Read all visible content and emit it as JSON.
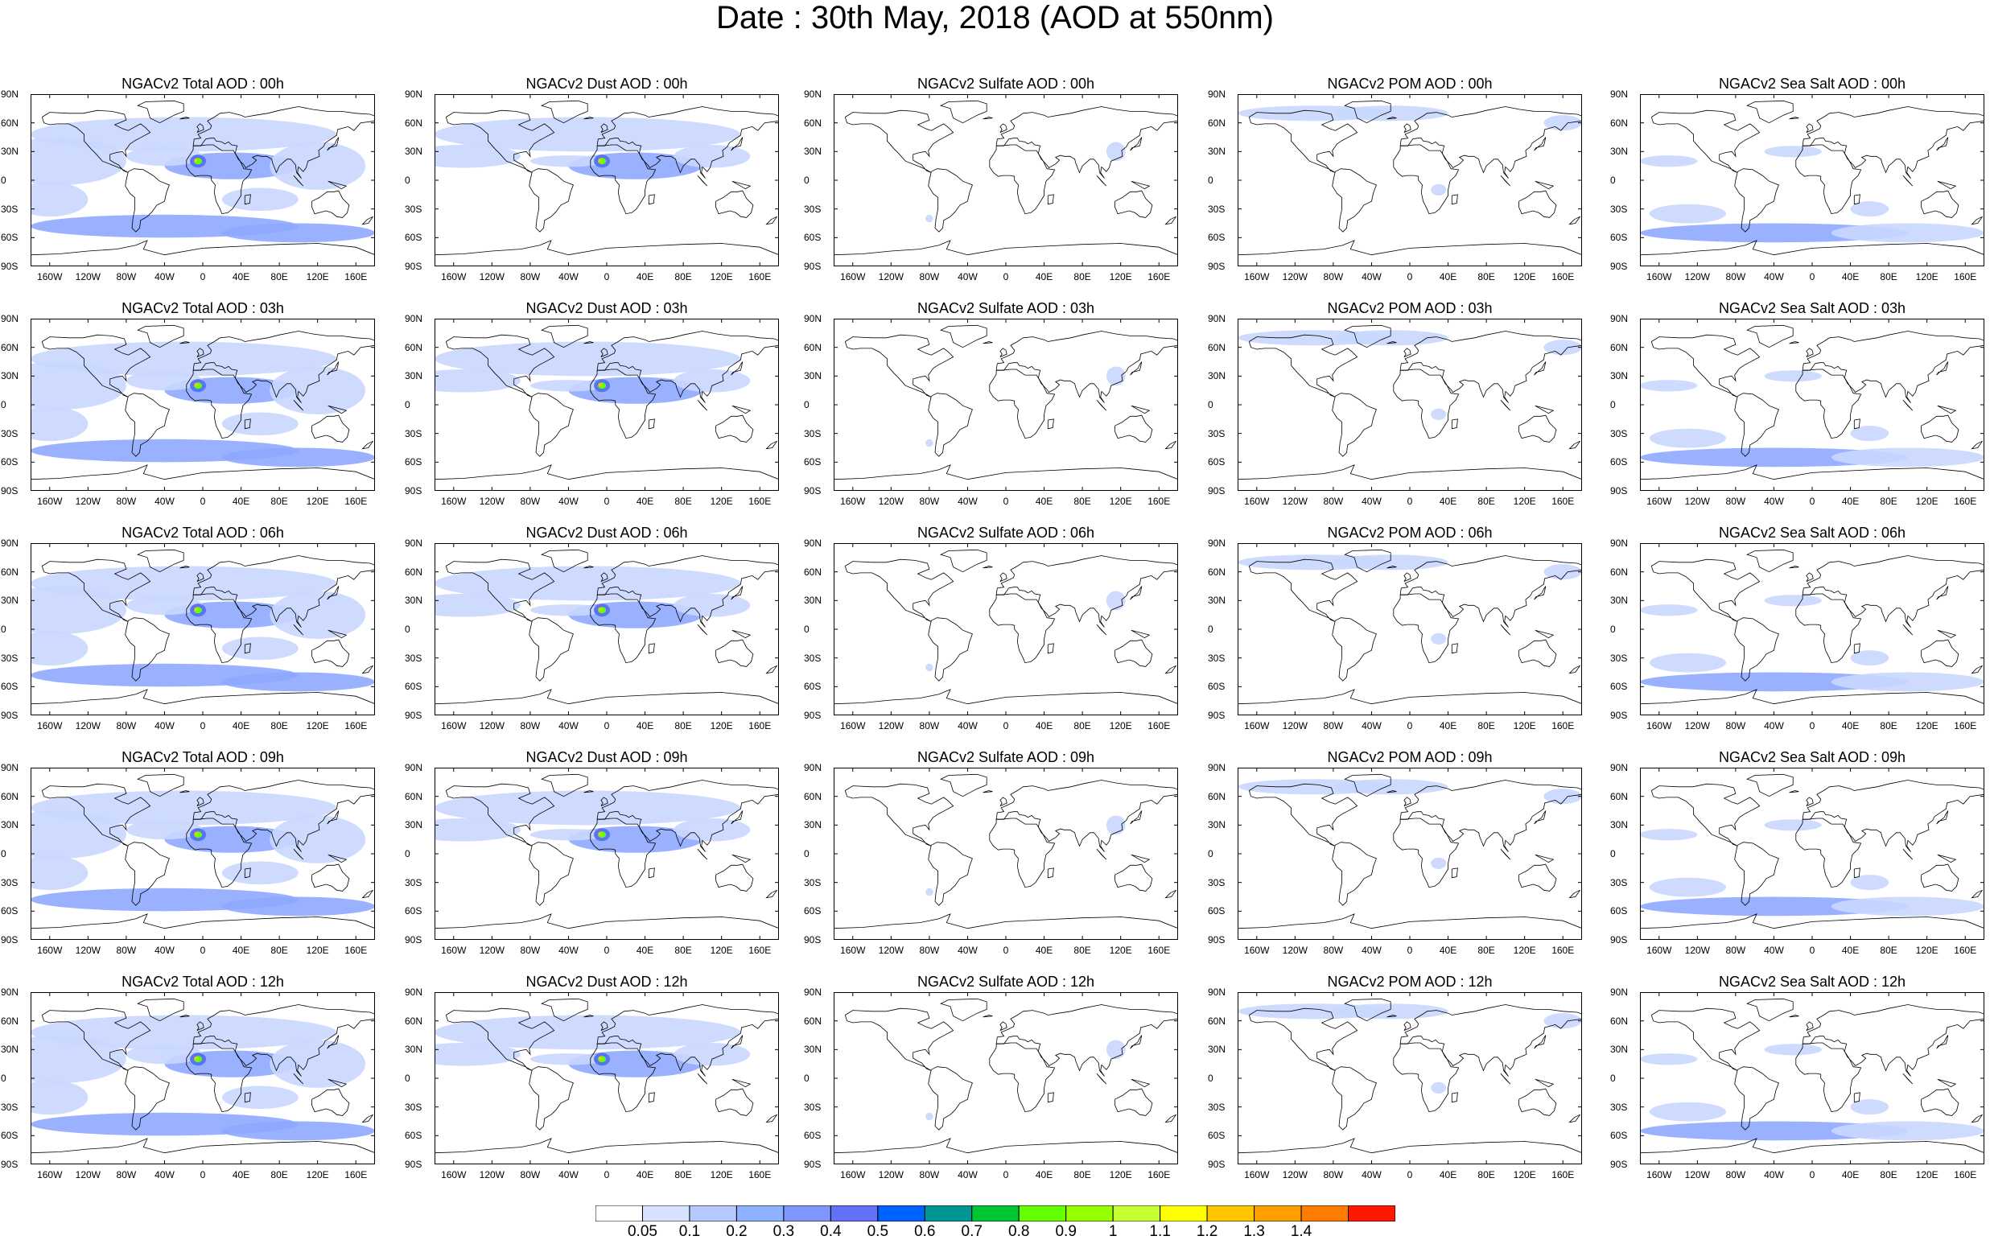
{
  "title": "Date : 30th May, 2018 (AOD at 550nm)",
  "lat_labels": [
    "90N",
    "60N",
    "30N",
    "0",
    "30S",
    "60S",
    "90S"
  ],
  "lon_labels": [
    "160W",
    "120W",
    "80W",
    "40W",
    "0",
    "40E",
    "80E",
    "120E",
    "160E"
  ],
  "panel_titles": [
    [
      "NGACv2 Total AOD : 00h",
      "NGACv2 Dust AOD : 00h",
      "NGACv2 Sulfate AOD : 00h",
      "NGACv2 POM AOD : 00h",
      "NGACv2 Sea Salt AOD : 00h"
    ],
    [
      "NGACv2 Total AOD : 03h",
      "NGACv2 Dust AOD : 03h",
      "NGACv2 Sulfate AOD : 03h",
      "NGACv2 POM AOD : 03h",
      "NGACv2 Sea Salt AOD : 03h"
    ],
    [
      "NGACv2 Total AOD : 06h",
      "NGACv2 Dust AOD : 06h",
      "NGACv2 Sulfate AOD : 06h",
      "NGACv2 POM AOD : 06h",
      "NGACv2 Sea Salt AOD : 06h"
    ],
    [
      "NGACv2 Total AOD : 09h",
      "NGACv2 Dust AOD : 09h",
      "NGACv2 Sulfate AOD : 09h",
      "NGACv2 POM AOD : 09h",
      "NGACv2 Sea Salt  AOD : 09h"
    ],
    [
      "NGACv2 Total AOD : 12h",
      "NGACv2 Dust AOD : 12h",
      "NGACv2 Sulfate AOD : 12h",
      "NGACv2 POM  AOD : 12h",
      "NGACv2 Sea Salt  AOD : 12h"
    ]
  ],
  "colorbar": {
    "labels": [
      "0.05",
      "0.1",
      "0.2",
      "0.3",
      "0.4",
      "0.5",
      "0.6",
      "0.7",
      "0.8",
      "0.9",
      "1",
      "1.1",
      "1.2",
      "1.3",
      "1.4"
    ],
    "colors": [
      "#ffffff",
      "#d6e2ff",
      "#b5c9ff",
      "#8eb2ff",
      "#7f96ff",
      "#6370f8",
      "#0063ff",
      "#009696",
      "#00c633",
      "#63ff00",
      "#96ff00",
      "#c6ff33",
      "#ffff00",
      "#ffc600",
      "#ffa000",
      "#ff7c00",
      "#ff1900"
    ]
  },
  "colors": {
    "land_outline": "#000000",
    "light_aerosol": "#c9d7ff",
    "medium_aerosol": "#8ea8ff",
    "heavy_aerosol": "#5a72f5"
  }
}
